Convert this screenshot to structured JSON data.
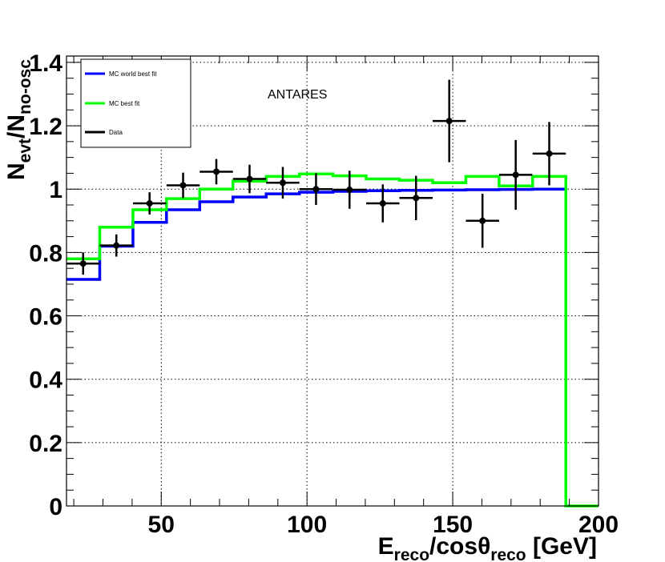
{
  "chart_data": {
    "type": "line",
    "title": "",
    "annotation": "ANTARES",
    "xlabel": {
      "E": "E",
      "E_sub": "reco",
      "mid": "/cos",
      "theta": "θ",
      "theta_sub": "reco",
      "unit": " [GeV]"
    },
    "ylabel": {
      "N1": "N",
      "N1_sub": "evt",
      "slash": "/",
      "N2": "N",
      "N2_sub": "no-osc"
    },
    "xlim": [
      17.5,
      200
    ],
    "ylim": [
      0,
      1.42
    ],
    "grid": true,
    "legend_position": "top-left",
    "x_ticks": [
      {
        "value": 50,
        "label": "50"
      },
      {
        "value": 100,
        "label": "100"
      },
      {
        "value": 150,
        "label": "150"
      },
      {
        "value": 200,
        "label": "200"
      }
    ],
    "y_ticks": [
      {
        "value": 0,
        "label": "0"
      },
      {
        "value": 0.2,
        "label": "0.2"
      },
      {
        "value": 0.4,
        "label": "0.4"
      },
      {
        "value": 0.6,
        "label": "0.6"
      },
      {
        "value": 0.8,
        "label": "0.8"
      },
      {
        "value": 1.0,
        "label": "1"
      },
      {
        "value": 1.2,
        "label": "1.2"
      },
      {
        "value": 1.4,
        "label": "1.4"
      }
    ],
    "series": [
      {
        "name": "MC world best fit",
        "color": "#0000ff",
        "style": "step",
        "edges": [
          17.5,
          28.9,
          40.3,
          51.8,
          63.2,
          74.6,
          86.0,
          97.4,
          108.9,
          120.3,
          131.7,
          143.1,
          154.5,
          165.9,
          177.4,
          188.8
        ],
        "values": [
          0.715,
          0.82,
          0.895,
          0.935,
          0.96,
          0.975,
          0.985,
          0.99,
          0.993,
          0.995,
          0.996,
          0.997,
          0.998,
          0.999,
          1.0
        ]
      },
      {
        "name": "MC best fit",
        "color": "#00ff00",
        "style": "step",
        "edges": [
          17.5,
          28.9,
          40.3,
          51.8,
          63.2,
          74.6,
          86.0,
          97.4,
          108.9,
          120.3,
          131.7,
          143.1,
          154.5,
          165.9,
          177.4,
          188.8
        ],
        "values": [
          0.78,
          0.88,
          0.935,
          0.97,
          1.0,
          1.025,
          1.04,
          1.048,
          1.042,
          1.032,
          1.028,
          1.02,
          1.04,
          1.01,
          1.04
        ],
        "tail": [
          {
            "x": 188.8,
            "y": 0
          },
          {
            "x": 200,
            "y": 0
          }
        ]
      },
      {
        "name": "Data",
        "color": "#000000",
        "style": "errorbar",
        "points": [
          {
            "x": 23.2,
            "y": 0.765,
            "xerr": 5.7,
            "yerr": 0.035
          },
          {
            "x": 34.6,
            "y": 0.822,
            "xerr": 5.7,
            "yerr": 0.035
          },
          {
            "x": 46.0,
            "y": 0.955,
            "xerr": 5.7,
            "yerr": 0.035
          },
          {
            "x": 57.5,
            "y": 1.012,
            "xerr": 5.7,
            "yerr": 0.04
          },
          {
            "x": 68.9,
            "y": 1.055,
            "xerr": 5.7,
            "yerr": 0.04
          },
          {
            "x": 80.3,
            "y": 1.032,
            "xerr": 5.7,
            "yerr": 0.045
          },
          {
            "x": 91.7,
            "y": 1.02,
            "xerr": 5.7,
            "yerr": 0.05
          },
          {
            "x": 103.1,
            "y": 1.0,
            "xerr": 5.7,
            "yerr": 0.05
          },
          {
            "x": 114.6,
            "y": 0.998,
            "xerr": 5.7,
            "yerr": 0.06
          },
          {
            "x": 126.0,
            "y": 0.955,
            "xerr": 5.7,
            "yerr": 0.06
          },
          {
            "x": 137.4,
            "y": 0.972,
            "xerr": 5.7,
            "yerr": 0.07
          },
          {
            "x": 148.8,
            "y": 1.215,
            "xerr": 5.7,
            "yerr": 0.13
          },
          {
            "x": 160.2,
            "y": 0.9,
            "xerr": 5.7,
            "yerr": 0.085
          },
          {
            "x": 171.6,
            "y": 1.045,
            "xerr": 5.7,
            "yerr": 0.11
          },
          {
            "x": 183.1,
            "y": 1.112,
            "xerr": 5.7,
            "yerr": 0.1
          }
        ]
      }
    ]
  }
}
